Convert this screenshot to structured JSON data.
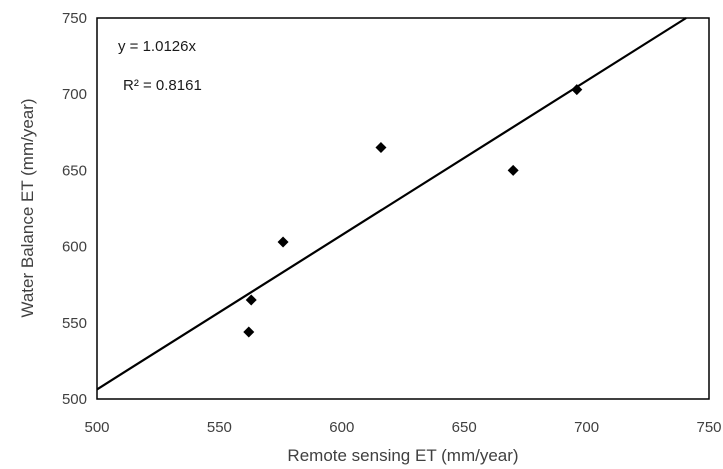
{
  "chart_data": {
    "type": "scatter",
    "title": "",
    "xlabel": "Remote sensing ET (mm/year)",
    "ylabel": "Water Balance ET (mm/year)",
    "xlim": [
      500,
      750
    ],
    "ylim": [
      500,
      750
    ],
    "xticks": [
      500,
      550,
      600,
      650,
      700,
      750
    ],
    "yticks": [
      500,
      550,
      600,
      650,
      700,
      750
    ],
    "tick_labels_x": [
      "500",
      "550",
      "600",
      "650",
      "700",
      "750"
    ],
    "tick_labels_y": [
      "500",
      "550",
      "600",
      "650",
      "700",
      "750"
    ],
    "grid": false,
    "legend": "none",
    "marker": "diamond",
    "marker_color": "#000000",
    "points": [
      {
        "x": 562,
        "y": 544
      },
      {
        "x": 563,
        "y": 565
      },
      {
        "x": 576,
        "y": 603
      },
      {
        "x": 616,
        "y": 665
      },
      {
        "x": 670,
        "y": 650
      },
      {
        "x": 696,
        "y": 703
      }
    ],
    "trendline": {
      "slope": 1.0126,
      "intercept": 0,
      "color": "#000000"
    },
    "annotations": {
      "equation": "y = 1.0126x",
      "r_squared": "R² = 0.8161"
    }
  }
}
